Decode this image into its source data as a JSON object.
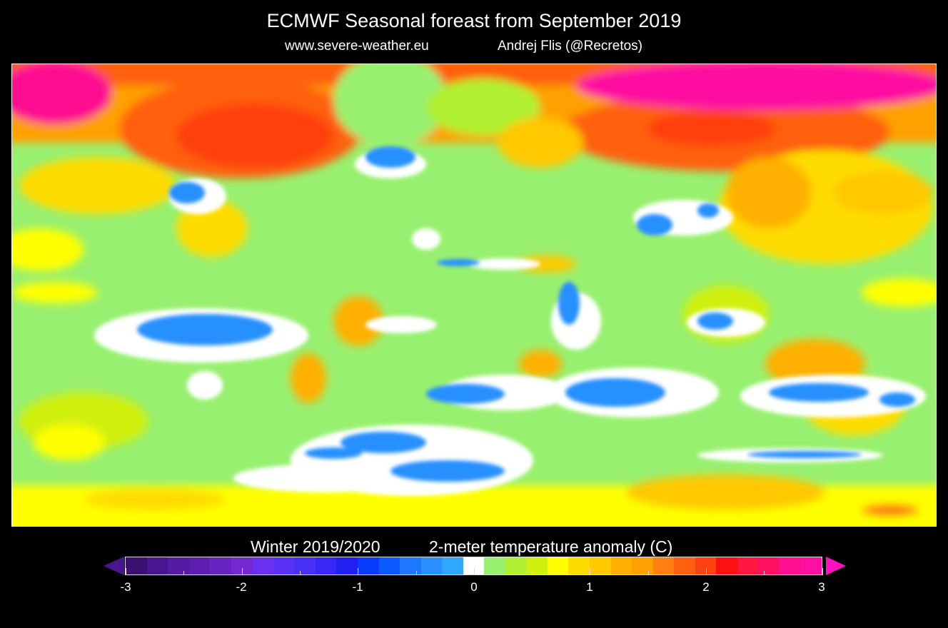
{
  "header": {
    "title": "ECMWF Seasonal foreast from September 2019",
    "website": "www.severe-weather.eu",
    "author": "Andrej Flis (@Recretos)"
  },
  "colorbar": {
    "season": "Winter 2019/2020",
    "variable": "2-meter temperature anomaly (C)",
    "ticks": [
      "-3",
      "-2",
      "-1",
      "0",
      "1",
      "2",
      "3"
    ],
    "range": [
      -3,
      3
    ],
    "under_color": "#4a1590",
    "over_color": "#ff10c0",
    "colors": [
      "#3a1070",
      "#4a1590",
      "#561aa4",
      "#5e1eb0",
      "#6824c0",
      "#7428d0",
      "#6a30f0",
      "#5a32f5",
      "#4830f5",
      "#3828f5",
      "#2020f0",
      "#0a3cff",
      "#0a5aff",
      "#1e78ff",
      "#2890ff",
      "#30a8ff",
      "#ffffff",
      "#9af070",
      "#b0f030",
      "#d0f010",
      "#ffff00",
      "#ffdc00",
      "#ffc800",
      "#ffb000",
      "#ffa000",
      "#ff8010",
      "#ff6010",
      "#ff4010",
      "#ff1010",
      "#ff1840",
      "#ff1060",
      "#ff1090",
      "#ff10a0"
    ]
  },
  "map": {
    "projection": "global lat-lon",
    "field": "2m temperature anomaly"
  }
}
